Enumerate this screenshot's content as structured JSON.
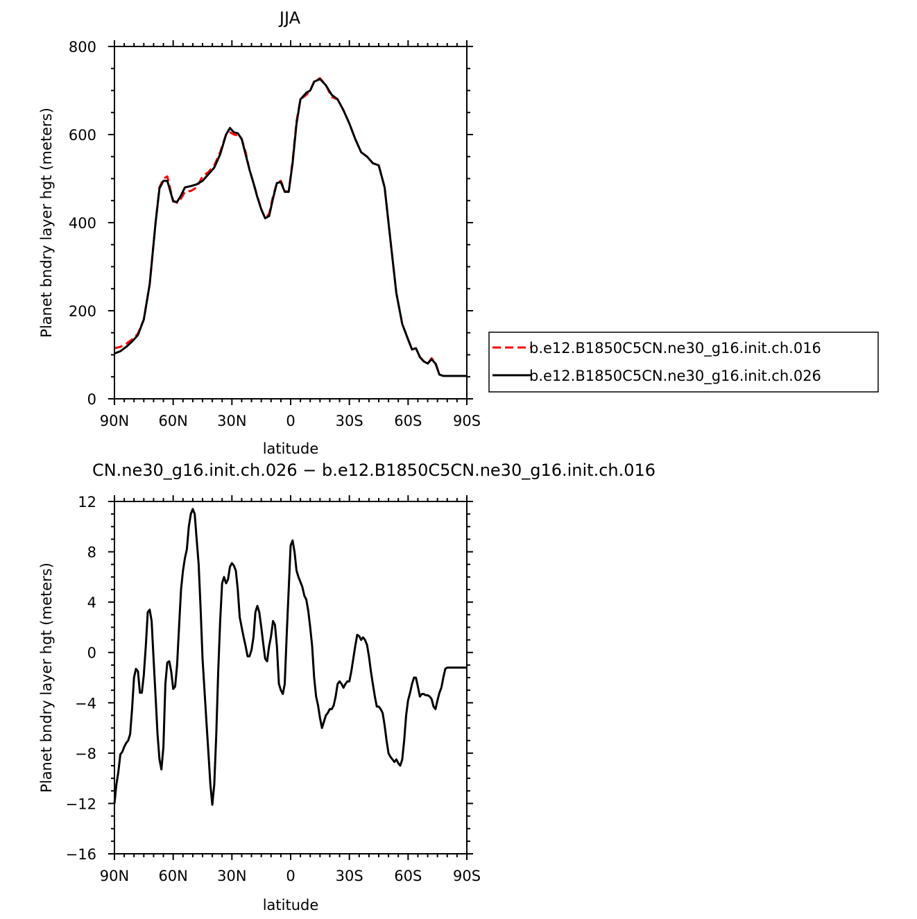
{
  "chart_data": [
    {
      "type": "line",
      "title": "JJA",
      "xlabel": "latitude",
      "ylabel": "Planet bndry layer hgt (meters)",
      "xlim": [
        90,
        -90
      ],
      "ylim": [
        0,
        800
      ],
      "x_ticks": [
        90,
        60,
        30,
        0,
        -30,
        -60,
        -90
      ],
      "x_tick_labels": [
        "90N",
        "60N",
        "30N",
        "0",
        "30S",
        "60S",
        "90S"
      ],
      "y_ticks": [
        0,
        200,
        400,
        600,
        800
      ],
      "y_tick_labels": [
        "0",
        "200",
        "400",
        "600",
        "800"
      ],
      "grid": false,
      "legend_position": "right",
      "series": [
        {
          "name": "b.e12.B1850C5CN.ne30_g16.init.ch.016",
          "color": "#ff0000",
          "dash": "dashed",
          "x": [
            90,
            87,
            84,
            81,
            78,
            75,
            72,
            69,
            67,
            65,
            63,
            62,
            60,
            58,
            56,
            54,
            51,
            48,
            45,
            42,
            39,
            36,
            33,
            31,
            29,
            27,
            25,
            23,
            21,
            19,
            17,
            15,
            13,
            11,
            9,
            7,
            5,
            3,
            1,
            -1,
            -3,
            -5,
            -8,
            -10,
            -12,
            -15,
            -18,
            -21,
            -24,
            -27,
            -30,
            -33,
            -36,
            -39,
            -42,
            -45,
            -48,
            -51,
            -54,
            -57,
            -60,
            -62,
            -64,
            -66,
            -68,
            -70,
            -72,
            -74,
            -76,
            -78,
            -80,
            -82,
            -84,
            -86,
            -88,
            -90
          ],
          "y": [
            115,
            118,
            125,
            135,
            148,
            180,
            260,
            400,
            480,
            500,
            505,
            485,
            450,
            445,
            455,
            470,
            472,
            480,
            505,
            515,
            530,
            560,
            600,
            605,
            600,
            598,
            590,
            560,
            520,
            490,
            460,
            430,
            410,
            420,
            460,
            490,
            495,
            472,
            470,
            540,
            630,
            680,
            690,
            700,
            720,
            728,
            712,
            685,
            680,
            655,
            625,
            590,
            560,
            550,
            535,
            530,
            480,
            360,
            240,
            170,
            135,
            112,
            115,
            95,
            85,
            80,
            92,
            82,
            55,
            52,
            52,
            52,
            52,
            52,
            52,
            52
          ]
        },
        {
          "name": "b.e12.B1850C5CN.ne30_g16.init.ch.026",
          "color": "#000000",
          "dash": "solid",
          "x": [
            90,
            87,
            84,
            81,
            78,
            75,
            72,
            69,
            67,
            65,
            63,
            62,
            60,
            58,
            56,
            54,
            51,
            48,
            45,
            42,
            39,
            36,
            33,
            31,
            29,
            27,
            25,
            23,
            21,
            19,
            17,
            15,
            13,
            11,
            9,
            7,
            5,
            3,
            1,
            -1,
            -3,
            -5,
            -8,
            -10,
            -12,
            -15,
            -18,
            -21,
            -24,
            -27,
            -30,
            -33,
            -36,
            -39,
            -42,
            -45,
            -48,
            -51,
            -54,
            -57,
            -60,
            -62,
            -64,
            -66,
            -68,
            -70,
            -72,
            -74,
            -76,
            -78,
            -80,
            -82,
            -84,
            -86,
            -88,
            -90
          ],
          "y": [
            103,
            108,
            118,
            130,
            145,
            180,
            260,
            400,
            478,
            495,
            495,
            480,
            448,
            447,
            462,
            480,
            483,
            487,
            495,
            510,
            525,
            555,
            600,
            615,
            605,
            603,
            590,
            555,
            520,
            490,
            458,
            430,
            410,
            415,
            455,
            490,
            492,
            470,
            470,
            535,
            625,
            680,
            695,
            700,
            720,
            726,
            712,
            690,
            680,
            655,
            625,
            590,
            560,
            550,
            535,
            530,
            480,
            360,
            240,
            170,
            135,
            112,
            115,
            95,
            85,
            80,
            90,
            80,
            55,
            52,
            52,
            52,
            52,
            52,
            52,
            52
          ]
        }
      ]
    },
    {
      "type": "line",
      "title": "CN.ne30_g16.init.ch.026 − b.e12.B1850C5CN.ne30_g16.init.ch.016",
      "xlabel": "latitude",
      "ylabel": "Planet bndry layer hgt (meters)",
      "xlim": [
        90,
        -90
      ],
      "ylim": [
        -16,
        12
      ],
      "x_ticks": [
        90,
        60,
        30,
        0,
        -30,
        -60,
        -90
      ],
      "x_tick_labels": [
        "90N",
        "60N",
        "30N",
        "0",
        "30S",
        "60S",
        "90S"
      ],
      "y_ticks": [
        -16,
        -12,
        -8,
        -4,
        0,
        4,
        8,
        12
      ],
      "y_tick_labels": [
        "−16",
        "−12",
        "−8",
        "−4",
        "0",
        "4",
        "8",
        "12"
      ],
      "grid": false,
      "series": [
        {
          "color": "#000000",
          "dash": "solid",
          "x": [
            90,
            89,
            88,
            87,
            86,
            85,
            84,
            83,
            82,
            81,
            80,
            79,
            78,
            77,
            76,
            75,
            74,
            73,
            72,
            71,
            70,
            69,
            68,
            67,
            66,
            65,
            64,
            63,
            62,
            61,
            60,
            59,
            58,
            57,
            56,
            55,
            54,
            53,
            52,
            51,
            50,
            49,
            48,
            47,
            46,
            45,
            44,
            43,
            42,
            41,
            40,
            39,
            38,
            37,
            36,
            35,
            34,
            33,
            32,
            31,
            30,
            29,
            28,
            27,
            26,
            25,
            24,
            23,
            22,
            21,
            20,
            19,
            18,
            17,
            16,
            15,
            14,
            13,
            12,
            11,
            10,
            9,
            8,
            7,
            6,
            5,
            4,
            3,
            2,
            1,
            0,
            -1,
            -2,
            -3,
            -4,
            -5,
            -6,
            -7,
            -8,
            -9,
            -10,
            -11,
            -12,
            -13,
            -14,
            -15,
            -16,
            -17,
            -18,
            -19,
            -20,
            -21,
            -22,
            -23,
            -24,
            -25,
            -26,
            -27,
            -28,
            -29,
            -30,
            -31,
            -32,
            -33,
            -34,
            -35,
            -36,
            -37,
            -38,
            -39,
            -40,
            -41,
            -42,
            -43,
            -44,
            -45,
            -46,
            -47,
            -48,
            -49,
            -50,
            -51,
            -52,
            -53,
            -54,
            -55,
            -56,
            -57,
            -58,
            -59,
            -60,
            -61,
            -62,
            -63,
            -64,
            -65,
            -66,
            -67,
            -68,
            -69,
            -70,
            -71,
            -72,
            -73,
            -74,
            -75,
            -76,
            -77,
            -78,
            -79,
            -80,
            -81,
            -82,
            -83,
            -84,
            -85,
            -86,
            -87,
            -88,
            -89,
            -90
          ],
          "y": [
            -12.0,
            -10.5,
            -9.5,
            -8.1,
            -7.9,
            -7.5,
            -7.2,
            -7.0,
            -6.5,
            -4.5,
            -2.0,
            -1.3,
            -1.5,
            -3.2,
            -3.2,
            -1.8,
            0.5,
            3.2,
            3.4,
            2.5,
            -0.5,
            -3.5,
            -6.5,
            -8.5,
            -9.3,
            -7.5,
            -2.5,
            -0.8,
            -0.7,
            -1.5,
            -2.9,
            -2.7,
            -1.0,
            2.0,
            5.0,
            6.5,
            7.5,
            8.2,
            10.0,
            11.0,
            11.4,
            11.0,
            9.0,
            7.0,
            3.5,
            -0.5,
            -3.0,
            -5.5,
            -8.0,
            -10.5,
            -12.1,
            -10.5,
            -6.5,
            -1.5,
            2.5,
            5.5,
            6.0,
            5.5,
            5.8,
            6.8,
            7.1,
            6.9,
            6.5,
            5.0,
            2.8,
            2.0,
            1.2,
            0.5,
            -0.3,
            -0.3,
            0.2,
            1.2,
            3.2,
            3.7,
            3.2,
            2.0,
            0.7,
            -0.5,
            -0.7,
            0.5,
            1.3,
            2.5,
            2.2,
            0.5,
            -2.5,
            -3.0,
            -3.3,
            -2.5,
            1.5,
            5.0,
            8.5,
            8.9,
            8.0,
            6.5,
            6.0,
            5.6,
            5.2,
            4.5,
            4.2,
            3.3,
            2.0,
            0.5,
            -2.0,
            -3.5,
            -4.2,
            -5.2,
            -6.0,
            -5.5,
            -5.0,
            -4.8,
            -4.5,
            -4.5,
            -4.2,
            -3.5,
            -2.5,
            -2.3,
            -2.5,
            -2.8,
            -2.5,
            -2.3,
            -2.3,
            -1.5,
            -0.5,
            0.5,
            1.4,
            1.3,
            1.0,
            1.2,
            1.0,
            0.6,
            -0.3,
            -1.5,
            -2.5,
            -3.5,
            -4.3,
            -4.3,
            -4.5,
            -4.8,
            -5.8,
            -7.0,
            -8.0,
            -8.3,
            -8.5,
            -8.7,
            -8.5,
            -8.8,
            -9.0,
            -8.5,
            -7.0,
            -5.0,
            -3.8,
            -3.2,
            -2.5,
            -2.0,
            -2.0,
            -2.7,
            -3.5,
            -3.3,
            -3.3,
            -3.4,
            -3.4,
            -3.5,
            -3.7,
            -4.3,
            -4.5,
            -3.8,
            -3.2,
            -2.8,
            -2.0,
            -1.3,
            -1.2,
            -1.2,
            -1.2,
            -1.2,
            -1.2,
            -1.2,
            -1.2,
            -1.2,
            -1.2,
            -1.2,
            -1.2
          ]
        }
      ]
    }
  ]
}
